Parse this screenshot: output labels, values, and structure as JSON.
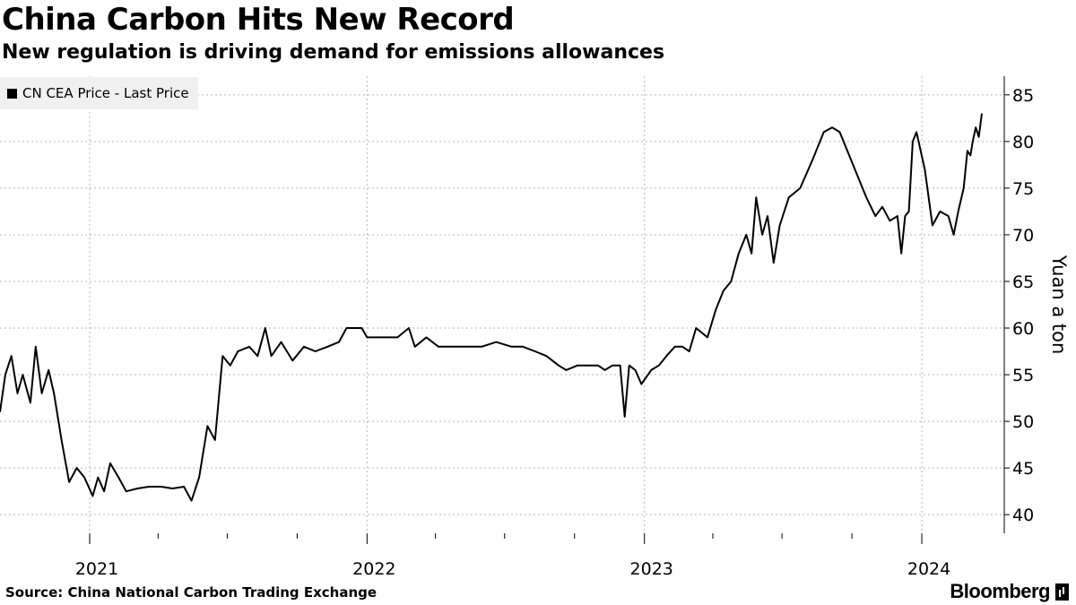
{
  "header": {
    "title": "China Carbon Hits New Record",
    "subtitle": "New regulation is driving demand for emissions allowances"
  },
  "legend": {
    "label": "CN CEA Price - Last Price"
  },
  "footer": {
    "source": "Source: China National Carbon Trading Exchange",
    "brand": "Bloomberg"
  },
  "chart_data": {
    "type": "line",
    "title": "China Carbon Hits New Record",
    "subtitle": "New regulation is driving demand for emissions allowances",
    "ylabel": "Yuan a ton",
    "xlabel": "",
    "ylim": [
      38,
      87
    ],
    "yticks": [
      40,
      45,
      50,
      55,
      60,
      65,
      70,
      75,
      80,
      85
    ],
    "xlim": [
      "2020-09-05",
      "2024-03-20"
    ],
    "xtick_labels": [
      {
        "label": "2021",
        "date": "2021-01-01"
      },
      {
        "label": "2022",
        "date": "2022-01-01"
      },
      {
        "label": "2023",
        "date": "2023-01-01"
      },
      {
        "label": "2024",
        "date": "2024-01-01"
      }
    ],
    "minor_ticks": [
      "2021-04-01",
      "2021-07-01",
      "2021-10-01",
      "2022-04-01",
      "2022-07-01",
      "2022-10-01",
      "2023-04-01",
      "2023-07-01",
      "2023-10-01"
    ],
    "grid": true,
    "legend_position": "top-left",
    "series": [
      {
        "name": "CN CEA Price - Last Price",
        "color": "#000000",
        "points": [
          [
            "2020-09-05",
            51.0
          ],
          [
            "2020-09-12",
            55.0
          ],
          [
            "2020-09-20",
            57.0
          ],
          [
            "2020-09-28",
            53.0
          ],
          [
            "2020-10-05",
            55.0
          ],
          [
            "2020-10-15",
            52.0
          ],
          [
            "2020-10-22",
            58.0
          ],
          [
            "2020-10-30",
            53.0
          ],
          [
            "2020-11-08",
            55.5
          ],
          [
            "2020-11-15",
            53.0
          ],
          [
            "2020-11-25",
            48.0
          ],
          [
            "2020-12-05",
            43.5
          ],
          [
            "2020-12-15",
            45.0
          ],
          [
            "2020-12-25",
            44.0
          ],
          [
            "2021-01-05",
            42.0
          ],
          [
            "2021-01-12",
            44.0
          ],
          [
            "2021-01-20",
            42.5
          ],
          [
            "2021-01-28",
            45.5
          ],
          [
            "2021-02-08",
            44.0
          ],
          [
            "2021-02-18",
            42.5
          ],
          [
            "2021-03-05",
            42.8
          ],
          [
            "2021-03-20",
            43.0
          ],
          [
            "2021-04-05",
            43.0
          ],
          [
            "2021-04-20",
            42.8
          ],
          [
            "2021-05-05",
            43.0
          ],
          [
            "2021-05-15",
            41.5
          ],
          [
            "2021-05-25",
            44.0
          ],
          [
            "2021-06-05",
            49.5
          ],
          [
            "2021-06-15",
            48.0
          ],
          [
            "2021-06-25",
            57.0
          ],
          [
            "2021-07-05",
            56.0
          ],
          [
            "2021-07-15",
            57.5
          ],
          [
            "2021-07-30",
            58.0
          ],
          [
            "2021-08-10",
            57.0
          ],
          [
            "2021-08-20",
            60.0
          ],
          [
            "2021-08-28",
            57.0
          ],
          [
            "2021-09-10",
            58.5
          ],
          [
            "2021-09-25",
            56.5
          ],
          [
            "2021-10-10",
            58.0
          ],
          [
            "2021-10-25",
            57.5
          ],
          [
            "2021-11-10",
            58.0
          ],
          [
            "2021-11-25",
            58.5
          ],
          [
            "2021-12-05",
            60.0
          ],
          [
            "2021-12-25",
            60.0
          ],
          [
            "2022-01-01",
            59.0
          ],
          [
            "2022-01-20",
            59.0
          ],
          [
            "2022-02-10",
            59.0
          ],
          [
            "2022-02-25",
            60.0
          ],
          [
            "2022-03-05",
            58.0
          ],
          [
            "2022-03-20",
            59.0
          ],
          [
            "2022-04-05",
            58.0
          ],
          [
            "2022-04-20",
            58.0
          ],
          [
            "2022-05-10",
            58.0
          ],
          [
            "2022-06-01",
            58.0
          ],
          [
            "2022-06-20",
            58.5
          ],
          [
            "2022-07-10",
            58.0
          ],
          [
            "2022-07-25",
            58.0
          ],
          [
            "2022-08-10",
            57.5
          ],
          [
            "2022-08-25",
            57.0
          ],
          [
            "2022-09-10",
            56.0
          ],
          [
            "2022-09-20",
            55.5
          ],
          [
            "2022-10-05",
            56.0
          ],
          [
            "2022-10-20",
            56.0
          ],
          [
            "2022-11-01",
            56.0
          ],
          [
            "2022-11-10",
            55.5
          ],
          [
            "2022-11-20",
            56.0
          ],
          [
            "2022-11-30",
            56.0
          ],
          [
            "2022-12-06",
            50.5
          ],
          [
            "2022-12-12",
            56.0
          ],
          [
            "2022-12-20",
            55.5
          ],
          [
            "2022-12-28",
            54.0
          ],
          [
            "2023-01-10",
            55.5
          ],
          [
            "2023-01-20",
            56.0
          ],
          [
            "2023-01-30",
            57.0
          ],
          [
            "2023-02-10",
            58.0
          ],
          [
            "2023-02-20",
            58.0
          ],
          [
            "2023-03-01",
            57.5
          ],
          [
            "2023-03-10",
            60.0
          ],
          [
            "2023-03-25",
            59.0
          ],
          [
            "2023-04-05",
            62.0
          ],
          [
            "2023-04-15",
            64.0
          ],
          [
            "2023-04-25",
            65.0
          ],
          [
            "2023-05-05",
            68.0
          ],
          [
            "2023-05-15",
            70.0
          ],
          [
            "2023-05-22",
            68.0
          ],
          [
            "2023-05-28",
            74.0
          ],
          [
            "2023-06-05",
            70.0
          ],
          [
            "2023-06-12",
            72.0
          ],
          [
            "2023-06-20",
            67.0
          ],
          [
            "2023-06-28",
            71.0
          ],
          [
            "2023-07-10",
            74.0
          ],
          [
            "2023-07-25",
            75.0
          ],
          [
            "2023-08-10",
            78.0
          ],
          [
            "2023-08-25",
            81.0
          ],
          [
            "2023-09-05",
            81.5
          ],
          [
            "2023-09-15",
            81.0
          ],
          [
            "2023-09-25",
            79.0
          ],
          [
            "2023-10-10",
            76.0
          ],
          [
            "2023-10-20",
            74.0
          ],
          [
            "2023-11-01",
            72.0
          ],
          [
            "2023-11-10",
            73.0
          ],
          [
            "2023-11-20",
            71.5
          ],
          [
            "2023-11-30",
            72.0
          ],
          [
            "2023-12-05",
            68.0
          ],
          [
            "2023-12-10",
            72.0
          ],
          [
            "2023-12-15",
            72.5
          ],
          [
            "2023-12-20",
            80.0
          ],
          [
            "2023-12-25",
            81.0
          ],
          [
            "2024-01-05",
            77.0
          ],
          [
            "2024-01-15",
            71.0
          ],
          [
            "2024-01-25",
            72.5
          ],
          [
            "2024-02-05",
            72.0
          ],
          [
            "2024-02-12",
            70.0
          ],
          [
            "2024-02-18",
            72.5
          ],
          [
            "2024-02-25",
            75.0
          ],
          [
            "2024-03-01",
            79.0
          ],
          [
            "2024-03-05",
            78.5
          ],
          [
            "2024-03-08",
            80.0
          ],
          [
            "2024-03-12",
            81.5
          ],
          [
            "2024-03-16",
            80.5
          ],
          [
            "2024-03-20",
            83.0
          ]
        ]
      }
    ]
  }
}
